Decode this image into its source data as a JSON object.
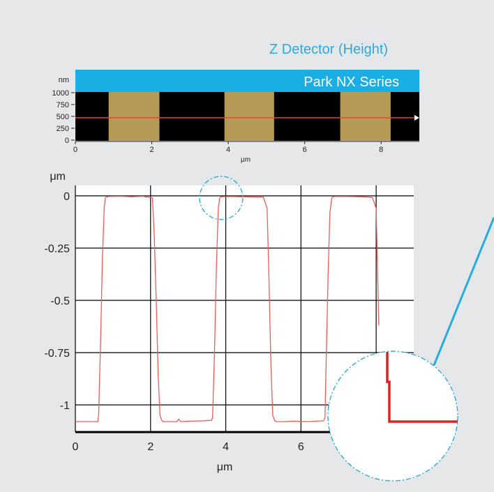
{
  "header_title": "Z Detector (Height)",
  "image_strip": {
    "banner_text": "Park NX Series",
    "banner_color": "#1aaee5",
    "unit_label": "nm",
    "y_ticks": [
      "1000",
      "750",
      "500",
      "250",
      "0"
    ],
    "x_ticks": [
      "0",
      "2",
      "4",
      "6",
      "8"
    ],
    "xlabel": "μm",
    "pad_color": "#b59a55",
    "trench_color": "#000000",
    "scan_line_color": "#ff3b30"
  },
  "chart_data": {
    "type": "line",
    "ylabel": "μm",
    "xlabel": "μm",
    "xlim": [
      0,
      9
    ],
    "ylim": [
      -1.13,
      0.05
    ],
    "x_ticks": [
      0,
      2,
      4,
      6
    ],
    "y_ticks": [
      0,
      -0.25,
      -0.5,
      -0.75,
      -1
    ],
    "y_tick_labels": [
      "0",
      "-0.25",
      "-0.5",
      "-0.75",
      "-1"
    ],
    "x_tick_labels": [
      "0",
      "2",
      "4",
      "6"
    ],
    "grid": true,
    "series": [
      {
        "color": "#f05a5a",
        "x": [
          0,
          0.6,
          0.62,
          0.67,
          0.72,
          0.77,
          0.8,
          0.84,
          0.88,
          1.2,
          1.5,
          1.8,
          2.05,
          2.1,
          2.15,
          2.2,
          2.25,
          2.3,
          2.35,
          2.5,
          2.7,
          2.75,
          2.8,
          3.0,
          3.4,
          3.62,
          3.65,
          3.7,
          3.75,
          3.8,
          3.84,
          3.88,
          4.2,
          4.6,
          5.0,
          5.1,
          5.15,
          5.2,
          5.25,
          5.3,
          5.35,
          5.5,
          5.8,
          6.2,
          6.6,
          6.64,
          6.67,
          6.72,
          6.77,
          6.82,
          6.86,
          6.9,
          7.2,
          7.6,
          7.9,
          8.0,
          8.03,
          8.07
        ],
        "y": [
          -1.08,
          -1.08,
          -1.05,
          -0.7,
          -0.3,
          -0.05,
          -0.01,
          -0.005,
          -0.003,
          -0.002,
          -0.004,
          -0.002,
          -0.01,
          -0.2,
          -0.5,
          -0.85,
          -1.05,
          -1.075,
          -1.08,
          -1.08,
          -1.08,
          -1.068,
          -1.08,
          -1.078,
          -1.076,
          -1.074,
          -1.06,
          -0.75,
          -0.35,
          -0.06,
          -0.01,
          -0.004,
          -0.003,
          -0.005,
          -0.006,
          -0.06,
          -0.4,
          -0.8,
          -1.05,
          -1.075,
          -1.08,
          -1.08,
          -1.078,
          -1.08,
          -1.076,
          -1.06,
          -0.8,
          -0.4,
          -0.08,
          -0.01,
          -0.004,
          -0.003,
          -0.003,
          -0.004,
          -0.008,
          -0.06,
          -0.3,
          -0.62
        ]
      }
    ]
  },
  "zoom_circle": {
    "stroke_color": "#29abe2"
  }
}
